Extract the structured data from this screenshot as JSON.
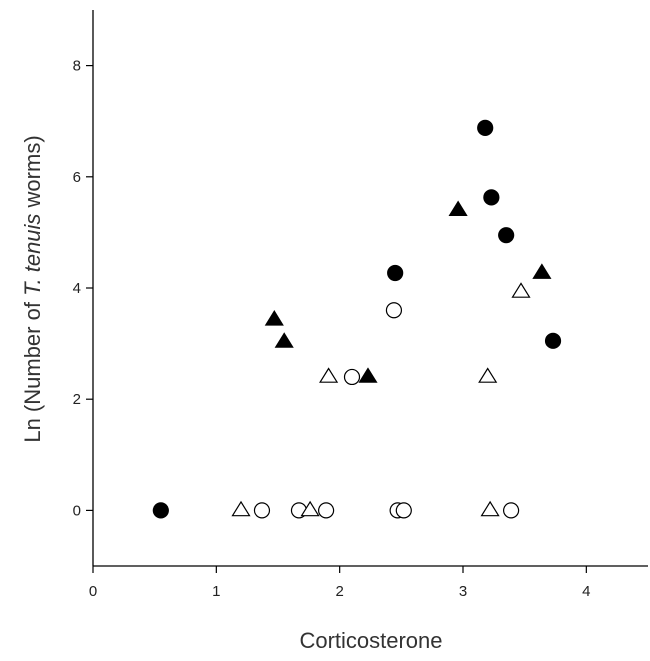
{
  "chart_data": {
    "type": "scatter",
    "xlabel": "Corticosterone",
    "ylabel_parts": [
      "Ln (Number of ",
      "T. tenuis",
      " worms)"
    ],
    "xlim": [
      0,
      4.5
    ],
    "ylim": [
      -1,
      9
    ],
    "xticks": [
      0,
      1,
      2,
      3,
      4
    ],
    "yticks": [
      0,
      2,
      4,
      6,
      8
    ],
    "grid": false,
    "legend": "none",
    "series": [
      {
        "marker": "circle-filled",
        "points": [
          [
            0.55,
            0
          ],
          [
            2.45,
            4.27
          ],
          [
            3.18,
            6.88
          ],
          [
            3.23,
            5.63
          ],
          [
            3.35,
            4.95
          ],
          [
            3.73,
            3.05
          ]
        ]
      },
      {
        "marker": "circle-open",
        "points": [
          [
            1.37,
            0
          ],
          [
            1.67,
            0
          ],
          [
            1.89,
            0
          ],
          [
            2.1,
            2.4
          ],
          [
            2.44,
            3.6
          ],
          [
            2.47,
            0
          ],
          [
            2.52,
            0
          ],
          [
            3.39,
            0
          ]
        ]
      },
      {
        "marker": "triangle-filled",
        "points": [
          [
            1.47,
            3.43
          ],
          [
            1.55,
            3.03
          ],
          [
            2.23,
            2.4
          ],
          [
            2.96,
            5.4
          ],
          [
            3.64,
            4.27
          ]
        ]
      },
      {
        "marker": "triangle-open",
        "points": [
          [
            1.2,
            0
          ],
          [
            1.76,
            0
          ],
          [
            1.91,
            2.4
          ],
          [
            3.2,
            2.4
          ],
          [
            3.22,
            0
          ],
          [
            3.47,
            3.93
          ]
        ]
      }
    ]
  }
}
